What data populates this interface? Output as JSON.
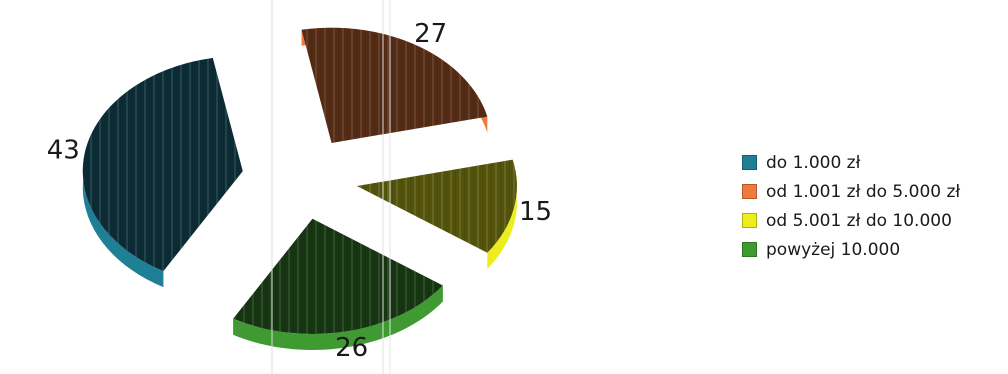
{
  "chart_data": {
    "type": "pie",
    "title": "",
    "categories": [
      "do 1.000 zł",
      "od 1.001 zł do 5.000 zł",
      "od 5.001 zł do 10.000",
      "powyżej 10.000"
    ],
    "values": [
      43,
      27,
      15,
      26
    ],
    "colors": [
      "#1f7f95",
      "#f07a3c",
      "#eded1e",
      "#3f9a32"
    ],
    "style": "3d-exploded",
    "legend_position": "right"
  }
}
